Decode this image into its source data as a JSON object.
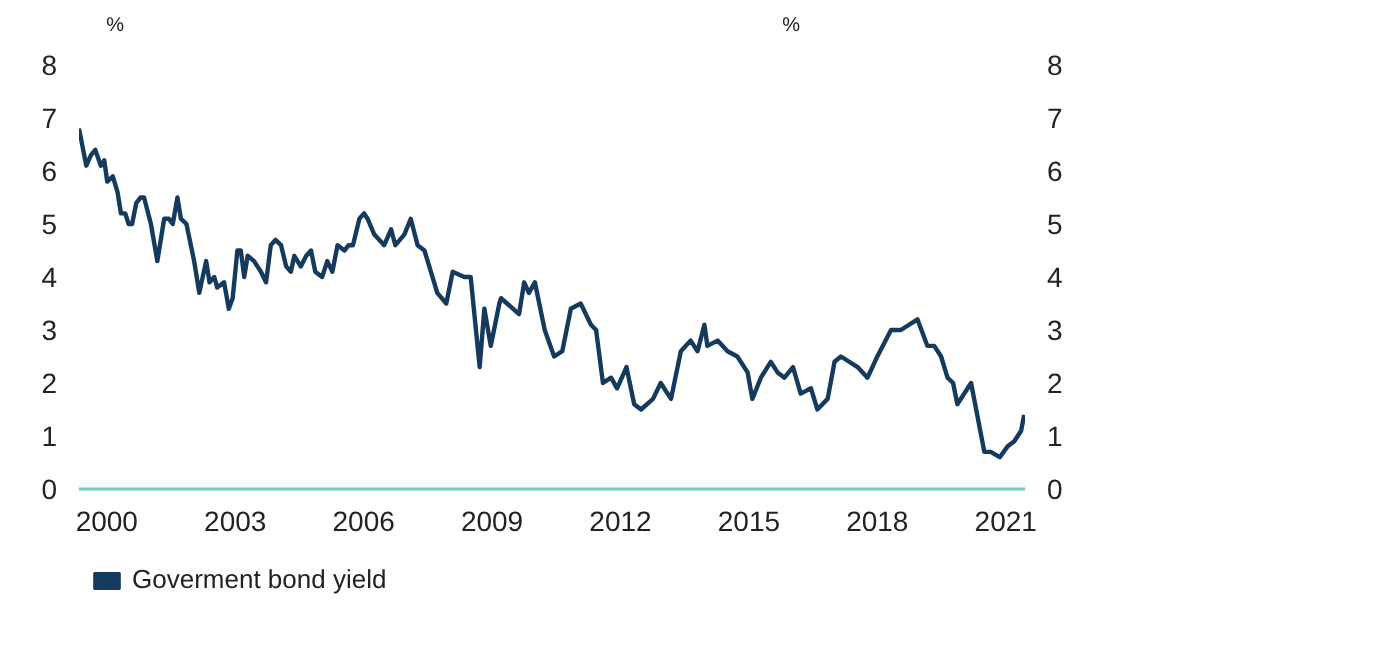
{
  "chart_data": {
    "type": "line",
    "ylabel": "%",
    "y2label": "%",
    "xlim": [
      1999.35,
      2021.45
    ],
    "xticks": [
      2000,
      2003,
      2006,
      2009,
      2012,
      2015,
      2018,
      2021
    ],
    "ylim": [
      0,
      8
    ],
    "yticks": [
      0,
      1,
      2,
      3,
      4,
      5,
      6,
      7,
      8
    ],
    "y2lim": [
      0,
      8
    ],
    "y2ticks": [
      0,
      1,
      2,
      3,
      4,
      5,
      6,
      7,
      8
    ],
    "grid": false,
    "legend": "bottom left",
    "marker": "none",
    "line_style": "solid",
    "series": [
      {
        "name": "Goverment bond yield",
        "color": "#143a5e",
        "x": [
          1999.35,
          1999.52,
          1999.63,
          1999.73,
          1999.86,
          1999.94,
          2000.01,
          2000.14,
          2000.25,
          2000.33,
          2000.43,
          2000.51,
          2000.59,
          2000.69,
          2000.79,
          2000.87,
          2001.03,
          2001.18,
          2001.34,
          2001.45,
          2001.54,
          2001.65,
          2001.73,
          2001.86,
          2002.04,
          2002.16,
          2002.32,
          2002.4,
          2002.51,
          2002.58,
          2002.74,
          2002.85,
          2002.94,
          2003.05,
          2003.13,
          2003.21,
          2003.29,
          2003.44,
          2003.6,
          2003.72,
          2003.83,
          2003.94,
          2004.07,
          2004.19,
          2004.3,
          2004.38,
          2004.53,
          2004.66,
          2004.77,
          2004.87,
          2005.03,
          2005.15,
          2005.27,
          2005.39,
          2005.55,
          2005.65,
          2005.75,
          2005.9,
          2006.01,
          2006.09,
          2006.25,
          2006.48,
          2006.64,
          2006.74,
          2006.95,
          2007.1,
          2007.26,
          2007.42,
          2007.57,
          2007.72,
          2007.93,
          2008.08,
          2008.35,
          2008.5,
          2008.71,
          2008.82,
          2008.97,
          2009.17,
          2009.21,
          2009.35,
          2009.63,
          2009.75,
          2009.86,
          2010.0,
          2010.23,
          2010.45,
          2010.64,
          2010.84,
          2011.07,
          2011.31,
          2011.43,
          2011.59,
          2011.78,
          2011.92,
          2012.14,
          2012.32,
          2012.48,
          2012.76,
          2012.94,
          2013.18,
          2013.41,
          2013.64,
          2013.8,
          2013.96,
          2014.03,
          2014.27,
          2014.5,
          2014.73,
          2014.97,
          2015.08,
          2015.28,
          2015.51,
          2015.67,
          2015.83,
          2016.03,
          2016.21,
          2016.45,
          2016.6,
          2016.84,
          2017.0,
          2017.15,
          2017.54,
          2017.77,
          2018.0,
          2018.32,
          2018.55,
          2018.94,
          2019.17,
          2019.33,
          2019.49,
          2019.64,
          2019.77,
          2019.87,
          2020.19,
          2020.5,
          2020.65,
          2020.86,
          2021.04,
          2021.2,
          2021.36,
          2021.43
        ],
        "values": [
          6.8,
          6.1,
          6.3,
          6.4,
          6.1,
          6.2,
          5.8,
          5.9,
          5.6,
          5.2,
          5.2,
          5.0,
          5.0,
          5.4,
          5.5,
          5.5,
          5.0,
          4.3,
          5.1,
          5.1,
          5.0,
          5.5,
          5.1,
          5.0,
          4.3,
          3.7,
          4.3,
          3.9,
          4.0,
          3.8,
          3.9,
          3.4,
          3.6,
          4.5,
          4.5,
          4.0,
          4.4,
          4.3,
          4.1,
          3.9,
          4.6,
          4.7,
          4.6,
          4.2,
          4.1,
          4.4,
          4.2,
          4.4,
          4.5,
          4.1,
          4.0,
          4.3,
          4.1,
          4.6,
          4.5,
          4.6,
          4.6,
          5.1,
          5.2,
          5.1,
          4.8,
          4.6,
          4.9,
          4.6,
          4.8,
          5.1,
          4.6,
          4.5,
          4.1,
          3.7,
          3.5,
          4.1,
          4.0,
          4.0,
          2.3,
          3.4,
          2.7,
          3.5,
          3.6,
          3.5,
          3.3,
          3.9,
          3.7,
          3.9,
          3.0,
          2.5,
          2.6,
          3.4,
          3.5,
          3.1,
          3.0,
          2.0,
          2.1,
          1.9,
          2.3,
          1.6,
          1.5,
          1.7,
          2.0,
          1.7,
          2.6,
          2.8,
          2.6,
          3.1,
          2.7,
          2.8,
          2.6,
          2.5,
          2.2,
          1.7,
          2.1,
          2.4,
          2.2,
          2.1,
          2.3,
          1.8,
          1.9,
          1.5,
          1.7,
          2.4,
          2.5,
          2.3,
          2.1,
          2.5,
          3.0,
          3.0,
          3.2,
          2.7,
          2.7,
          2.5,
          2.1,
          2.0,
          1.6,
          2.0,
          0.7,
          0.7,
          0.6,
          0.8,
          0.9,
          1.1,
          1.4
        ]
      }
    ]
  }
}
